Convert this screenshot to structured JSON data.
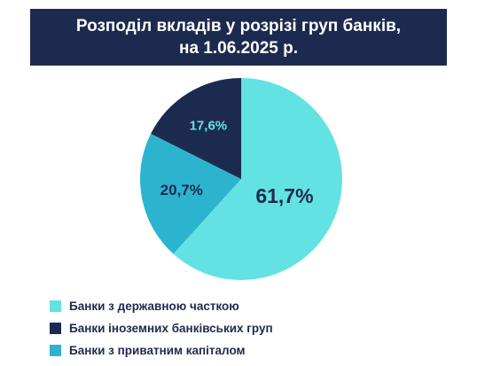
{
  "header": {
    "title_line1": "Розподіл вкладів у розрізі груп банків,",
    "title_line2": "на 1.06.2025 р."
  },
  "chart_data": {
    "type": "pie",
    "title": "Розподіл вкладів у розрізі груп банків, на 1.06.2025 р.",
    "slices": [
      {
        "name": "Банки з державною часткою",
        "value": 61.7,
        "label": "61,7%",
        "color": "#62e2e2",
        "label_color": "#1d2a4f"
      },
      {
        "name": "Банки з приватним капіталом",
        "value": 20.7,
        "label": "20,7%",
        "color": "#2cb4cf",
        "label_color": "#1d2a4f"
      },
      {
        "name": "Банки іноземних банківських груп",
        "value": 17.6,
        "label": "17,6%",
        "color": "#1d2a4f",
        "label_color": "#62e2e2"
      }
    ],
    "legend": {
      "placement": "bottom-left",
      "items": [
        {
          "label": "Банки з державною часткою",
          "color": "#62e2e2"
        },
        {
          "label": "Банки іноземних банківських груп",
          "color": "#1d2a4f"
        },
        {
          "label": "Банки з приватним капіталом",
          "color": "#2cb4cf"
        }
      ]
    }
  }
}
